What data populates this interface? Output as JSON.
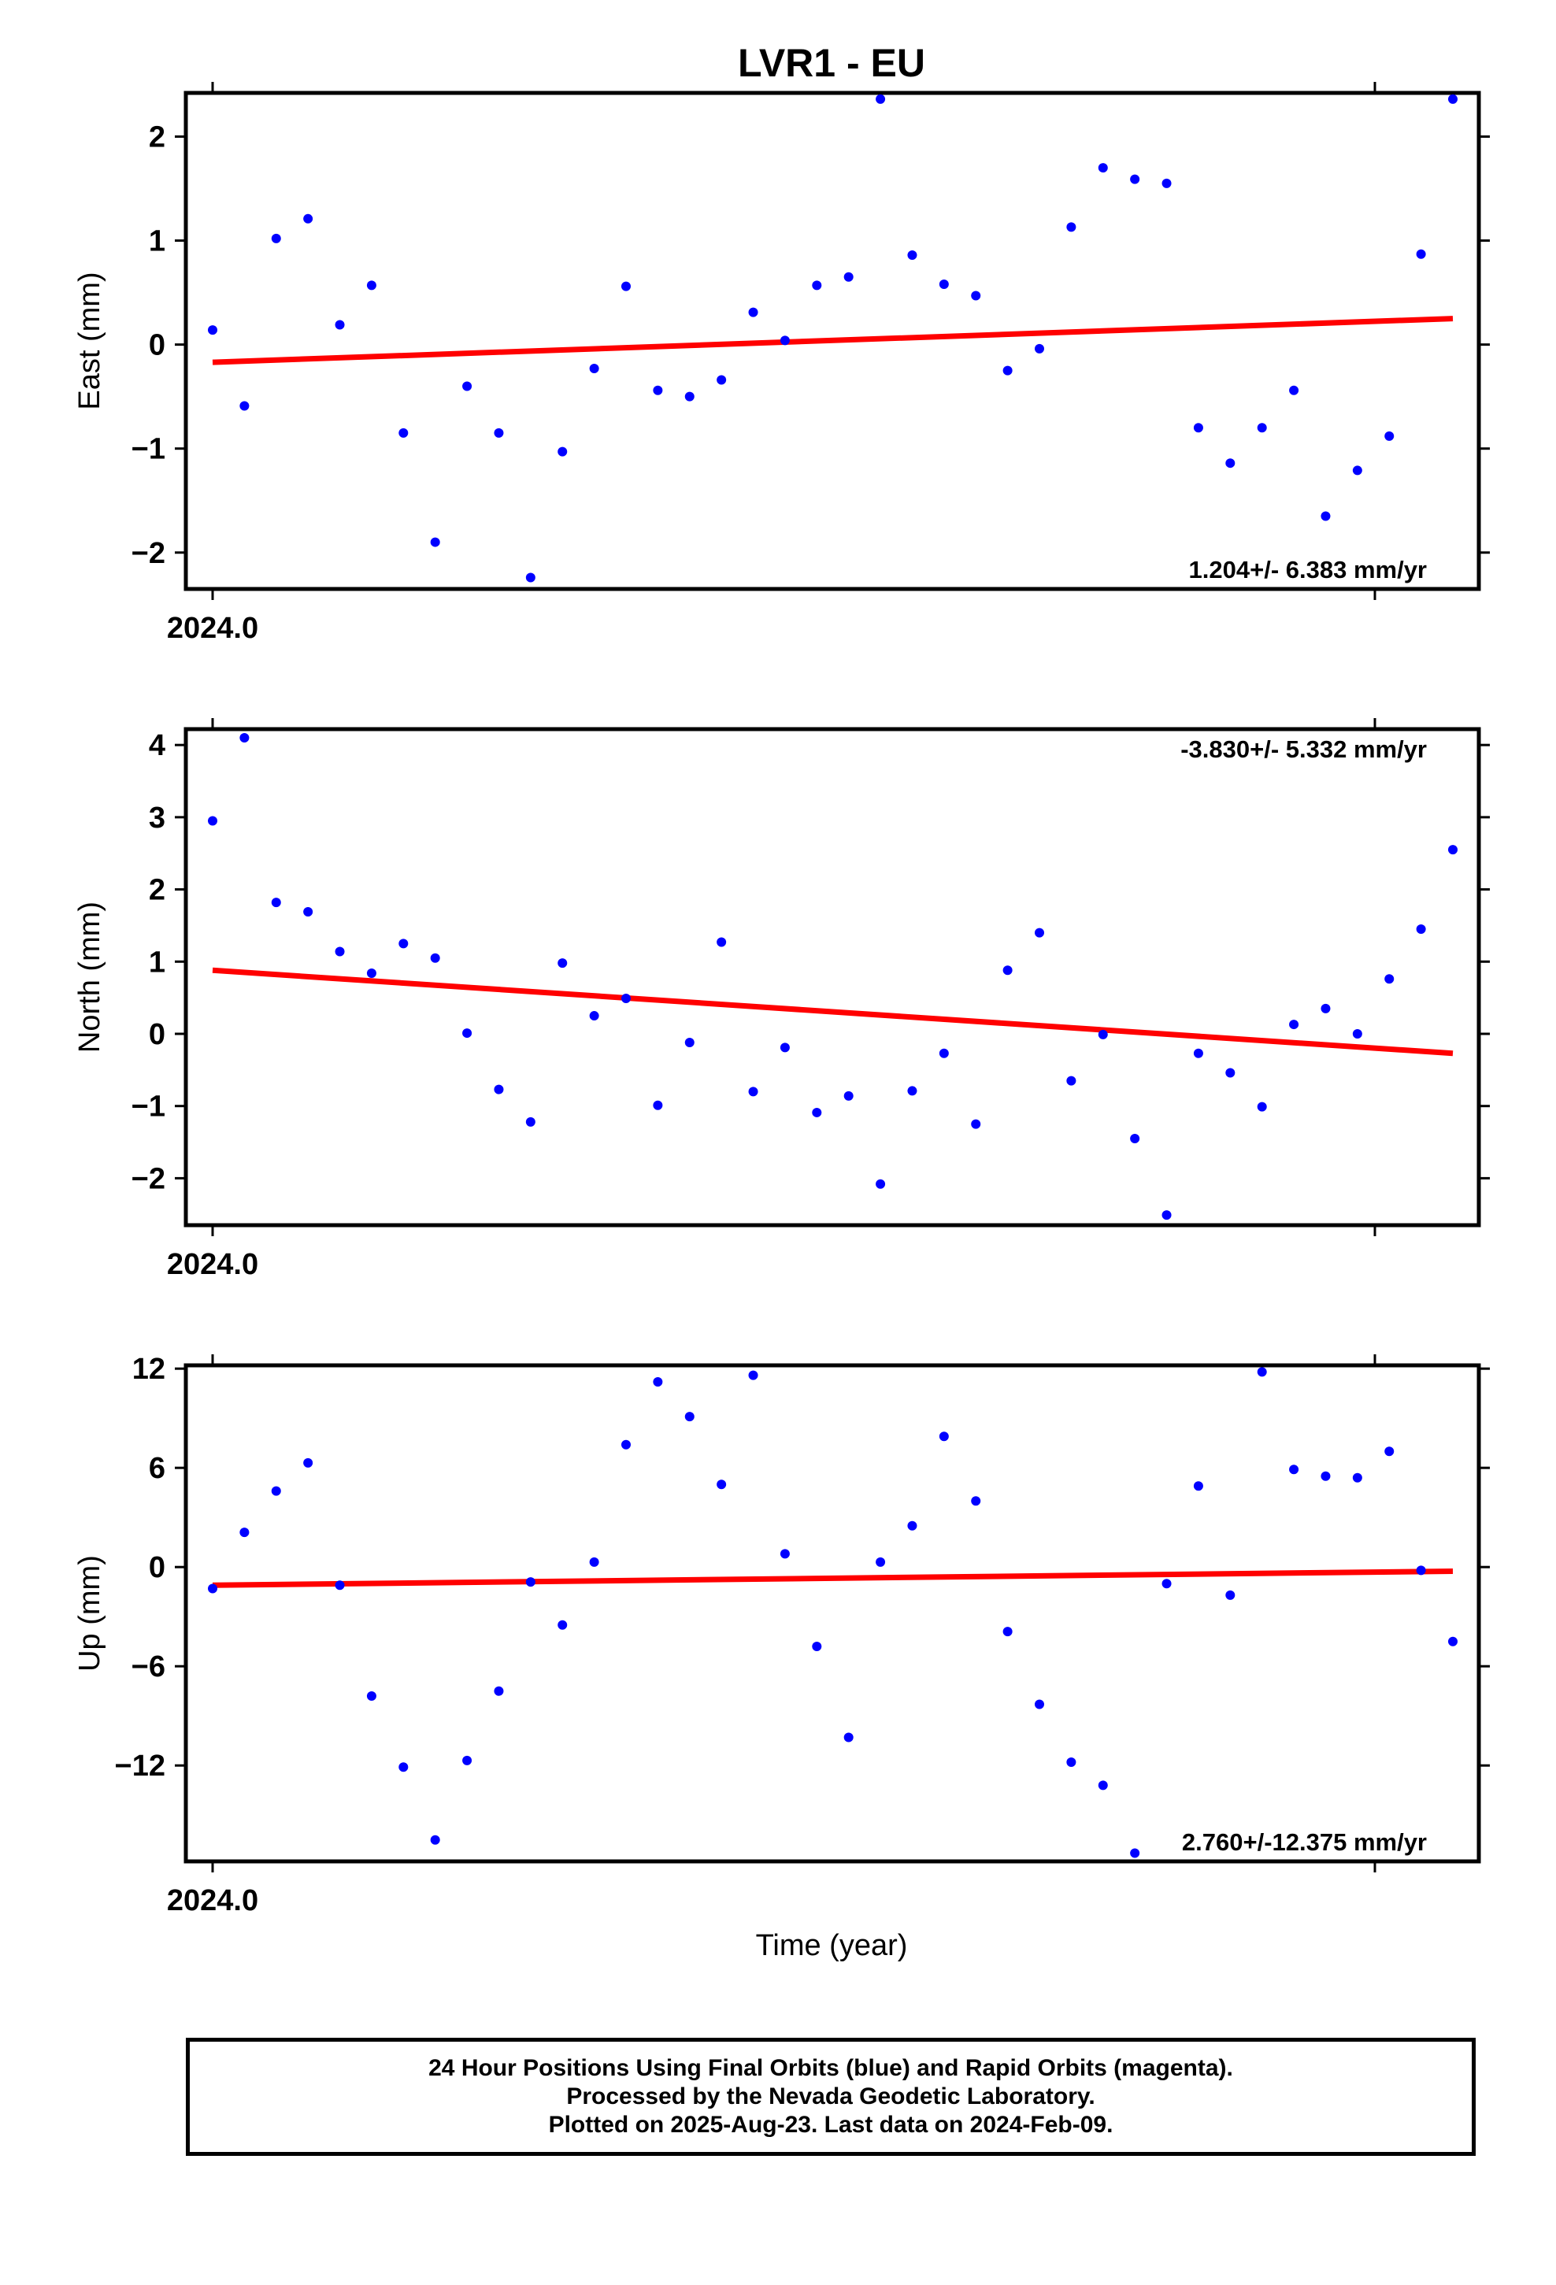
{
  "title": "LVR1 - EU",
  "x_axis_label": "Time (year)",
  "caption": {
    "line1": "24 Hour Positions Using Final Orbits (blue) and Rapid Orbits (magenta).",
    "line2": "Processed by the Nevada Geodetic Laboratory.",
    "line3": "Plotted on 2025-Aug-23. Last data on 2024-Feb-09."
  },
  "colors": {
    "points": "#0000ff",
    "fit": "#ff0000",
    "axes": "#000000"
  },
  "chart_data": [
    {
      "type": "scatter",
      "name": "East",
      "ylabel": "East (mm)",
      "ylim": [
        -2.35,
        2.42
      ],
      "yticks": [
        2,
        1,
        0,
        -1,
        -2
      ],
      "ytick_labels": [
        "2",
        "1",
        "0",
        "−1",
        "−2"
      ],
      "xtick_label": "2024.0",
      "rate_label": "1.204+/- 6.383 mm/yr",
      "rate_position": "bottom-right",
      "values": [
        0.14,
        -0.59,
        1.02,
        1.21,
        0.19,
        0.57,
        -0.85,
        -1.9,
        -0.4,
        -0.85,
        -2.24,
        -1.03,
        -0.23,
        0.56,
        -0.44,
        -0.5,
        -0.34,
        0.31,
        0.04,
        0.57,
        0.65,
        2.36,
        0.86,
        0.58,
        0.47,
        -0.25,
        -0.04,
        1.13,
        1.7,
        1.59,
        1.55,
        -0.8,
        -1.14,
        -0.8,
        -0.44,
        -1.65,
        -1.21,
        -0.88,
        0.87,
        2.36
      ],
      "fit": [
        -0.17,
        0.25
      ]
    },
    {
      "type": "scatter",
      "name": "North",
      "ylabel": "North (mm)",
      "ylim": [
        -2.65,
        4.22
      ],
      "yticks": [
        4,
        3,
        2,
        1,
        0,
        -1,
        -2
      ],
      "ytick_labels": [
        "4",
        "3",
        "2",
        "1",
        "0",
        "−1",
        "−2"
      ],
      "xtick_label": "2024.0",
      "rate_label": "-3.830+/- 5.332 mm/yr",
      "rate_position": "top-right",
      "values": [
        2.95,
        4.1,
        1.82,
        1.69,
        1.14,
        0.84,
        1.25,
        1.05,
        0.01,
        -0.77,
        -1.22,
        0.98,
        0.25,
        0.49,
        -0.99,
        -0.12,
        1.27,
        -0.8,
        -0.19,
        -1.09,
        -0.86,
        -2.08,
        -0.79,
        -0.27,
        -1.25,
        0.88,
        1.4,
        -0.65,
        -0.01,
        -1.45,
        -2.51,
        -0.27,
        -0.54,
        -1.01,
        0.13,
        0.35,
        0.0,
        0.76,
        1.45,
        2.55
      ],
      "fit": [
        0.88,
        -0.27
      ]
    },
    {
      "type": "scatter",
      "name": "Up",
      "ylabel": "Up (mm)",
      "ylim": [
        -17.8,
        12.2
      ],
      "yticks": [
        12,
        6,
        0,
        -6,
        -12
      ],
      "ytick_labels": [
        "12",
        "6",
        "0",
        "−6",
        "−12"
      ],
      "xtick_label": "2024.0",
      "rate_label": "2.760+/-12.375 mm/yr",
      "rate_position": "bottom-right",
      "values": [
        -1.3,
        2.1,
        4.6,
        6.3,
        -1.1,
        -7.8,
        -12.1,
        -16.5,
        -11.7,
        -7.5,
        -0.9,
        -3.5,
        0.3,
        7.4,
        11.2,
        9.1,
        5.0,
        11.6,
        0.8,
        -4.8,
        -10.3,
        0.3,
        2.5,
        7.9,
        4.0,
        -3.9,
        -8.3,
        -11.8,
        -13.2,
        -17.3,
        -1.0,
        4.9,
        -1.7,
        11.8,
        5.9,
        5.5,
        5.4,
        7.0,
        -0.2,
        -4.5
      ],
      "fit": [
        -1.1,
        -0.25
      ]
    }
  ]
}
